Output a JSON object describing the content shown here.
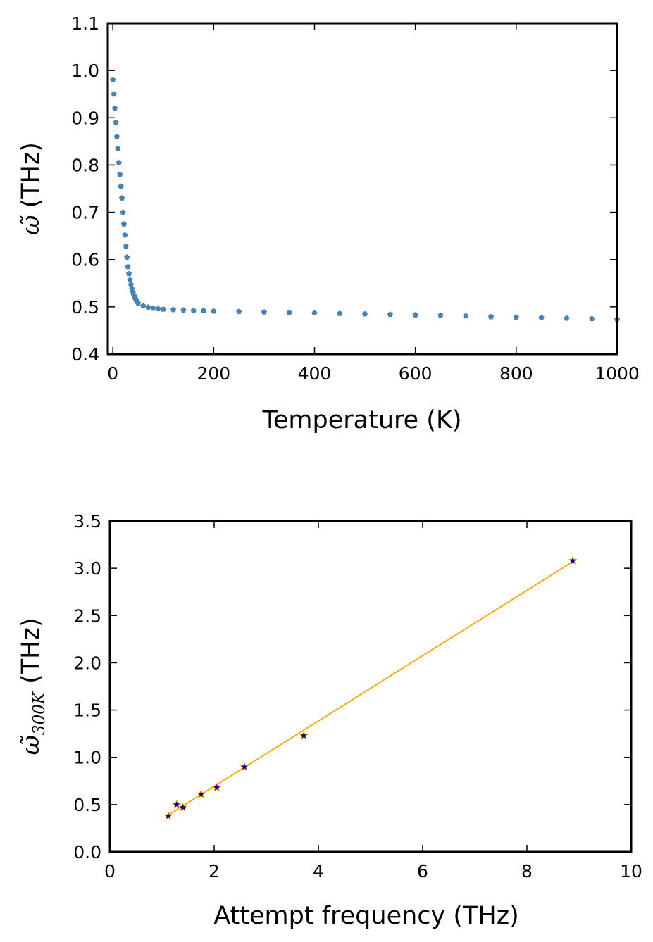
{
  "chart_data": [
    {
      "type": "scatter",
      "title": "",
      "xlabel": "Temperature (K)",
      "ylabel_symbol": "ω̃",
      "ylabel_unit": "(THz)",
      "xlim": [
        -10,
        1000
      ],
      "ylim": [
        0.4,
        1.1
      ],
      "xticks": [
        "0",
        "200",
        "400",
        "600",
        "800",
        "1000"
      ],
      "yticks": [
        "0.4",
        "0.5",
        "0.6",
        "0.7",
        "0.8",
        "0.9",
        "1.0",
        "1.1"
      ],
      "grid": false,
      "legend": "none",
      "marker_color": "#4682b4",
      "series": [
        {
          "x": [
            0,
            2,
            4,
            6,
            8,
            10,
            12,
            14,
            16,
            18,
            20,
            22,
            24,
            26,
            28,
            30,
            32,
            34,
            36,
            38,
            40,
            42,
            44,
            46,
            48,
            50,
            60,
            70,
            80,
            90,
            100,
            120,
            140,
            160,
            180,
            200,
            250,
            300,
            350,
            400,
            450,
            500,
            550,
            600,
            650,
            700,
            750,
            800,
            850,
            900,
            950,
            1000
          ],
          "y": [
            0.98,
            0.95,
            0.92,
            0.89,
            0.86,
            0.835,
            0.805,
            0.78,
            0.755,
            0.73,
            0.7,
            0.675,
            0.652,
            0.628,
            0.605,
            0.585,
            0.57,
            0.557,
            0.547,
            0.538,
            0.53,
            0.524,
            0.519,
            0.515,
            0.511,
            0.508,
            0.502,
            0.499,
            0.497,
            0.496,
            0.495,
            0.494,
            0.493,
            0.492,
            0.492,
            0.491,
            0.49,
            0.489,
            0.488,
            0.487,
            0.486,
            0.485,
            0.484,
            0.483,
            0.482,
            0.481,
            0.479,
            0.478,
            0.477,
            0.476,
            0.475,
            0.474
          ]
        }
      ]
    },
    {
      "type": "scatter",
      "title": "",
      "xlabel": "Attempt frequency (THz)",
      "ylabel_symbol": "ω̃",
      "ylabel_subscript": "300K",
      "ylabel_unit": "(THz)",
      "xlim": [
        0,
        10
      ],
      "ylim": [
        0.0,
        3.5
      ],
      "xticks": [
        "0",
        "2",
        "4",
        "6",
        "8",
        "10"
      ],
      "yticks": [
        "0.0",
        "0.5",
        "1.0",
        "1.5",
        "2.0",
        "2.5",
        "3.0",
        "3.5"
      ],
      "grid": false,
      "legend": "none",
      "marker_color": "#00008b",
      "fit_color": "#ffa500",
      "series": [
        {
          "x": [
            1.12,
            1.28,
            1.4,
            1.75,
            2.05,
            2.58,
            3.72,
            8.88
          ],
          "y": [
            0.38,
            0.5,
            0.47,
            0.61,
            0.68,
            0.9,
            1.23,
            3.08
          ]
        }
      ],
      "fit_line": {
        "x": [
          1.12,
          8.88
        ],
        "y": [
          0.39,
          3.07
        ]
      }
    }
  ]
}
